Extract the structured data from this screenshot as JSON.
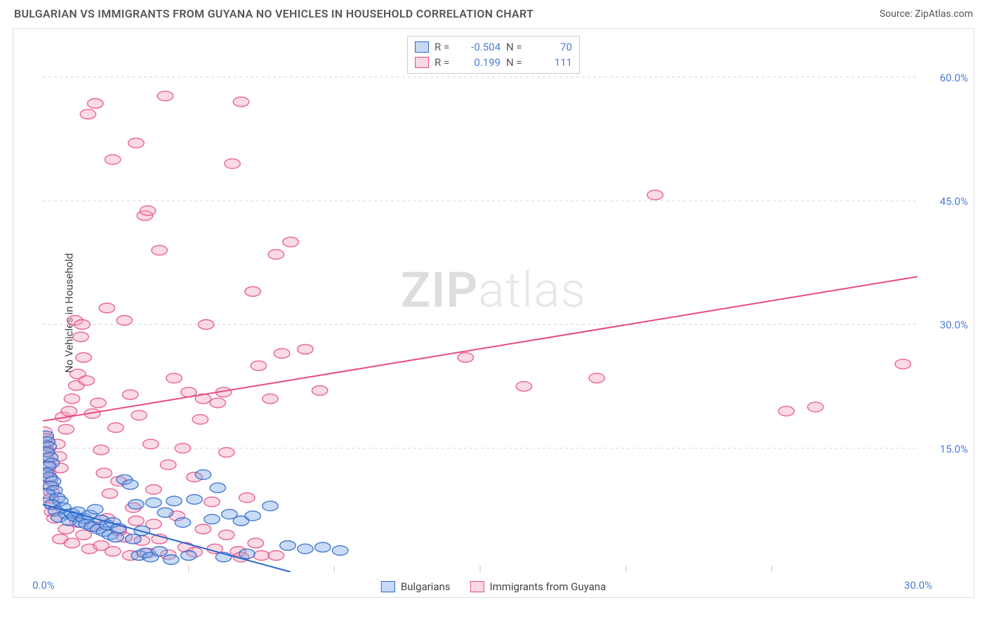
{
  "header": {
    "title": "BULGARIAN VS IMMIGRANTS FROM GUYANA NO VEHICLES IN HOUSEHOLD CORRELATION CHART",
    "source_label": "Source: ZipAtlas.com"
  },
  "watermark": {
    "zip": "ZIP",
    "atlas": "atlas"
  },
  "chart": {
    "type": "scatter",
    "ylabel": "No Vehicles in Household",
    "xlim": [
      0,
      30
    ],
    "ylim": [
      0,
      65
    ],
    "x_ticks_major": [
      0,
      30
    ],
    "x_tick_labels": [
      "0.0%",
      "30.0%"
    ],
    "x_ticks_minor": [
      5,
      10,
      15,
      20,
      25
    ],
    "y_ticks": [
      15,
      30,
      45,
      60
    ],
    "y_tick_labels": [
      "15.0%",
      "30.0%",
      "45.0%",
      "60.0%"
    ],
    "grid_color": "#dddddd",
    "axis_color": "#cfcfcf",
    "background_color": "#ffffff",
    "marker_radius": 9,
    "marker_opacity": 0.42,
    "marker_stroke_opacity": 0.85,
    "line_width": 2,
    "series": [
      {
        "id": "bulgarians",
        "label": "Bulgarians",
        "fill": "#7fa9e8",
        "stroke": "#2a66c9",
        "r_value": "-0.504",
        "n_value": "70",
        "trend": {
          "x1": 0,
          "y1": 8.2,
          "x2": 8.5,
          "y2": 0
        },
        "points": [
          [
            0.1,
            16.5
          ],
          [
            0.15,
            15.8
          ],
          [
            0.2,
            15.2
          ],
          [
            0.12,
            14.5
          ],
          [
            0.25,
            13.9
          ],
          [
            0.3,
            13.2
          ],
          [
            0.18,
            12.8
          ],
          [
            0.1,
            12.0
          ],
          [
            0.22,
            11.5
          ],
          [
            0.35,
            11.0
          ],
          [
            0.28,
            10.4
          ],
          [
            0.4,
            9.9
          ],
          [
            0.15,
            9.5
          ],
          [
            0.5,
            9.0
          ],
          [
            0.6,
            8.6
          ],
          [
            0.3,
            8.2
          ],
          [
            0.7,
            7.8
          ],
          [
            0.45,
            7.4
          ],
          [
            0.8,
            7.0
          ],
          [
            0.55,
            6.6
          ],
          [
            0.9,
            6.2
          ],
          [
            1.0,
            7.1
          ],
          [
            1.1,
            6.7
          ],
          [
            1.2,
            7.3
          ],
          [
            1.3,
            6.0
          ],
          [
            1.4,
            6.5
          ],
          [
            1.5,
            5.8
          ],
          [
            1.6,
            6.9
          ],
          [
            1.7,
            5.5
          ],
          [
            1.8,
            7.6
          ],
          [
            1.9,
            5.2
          ],
          [
            2.0,
            6.3
          ],
          [
            2.1,
            4.9
          ],
          [
            2.2,
            5.7
          ],
          [
            2.3,
            4.5
          ],
          [
            2.4,
            6.0
          ],
          [
            2.5,
            4.2
          ],
          [
            2.6,
            5.3
          ],
          [
            2.8,
            11.2
          ],
          [
            3.0,
            10.6
          ],
          [
            3.1,
            4.0
          ],
          [
            3.2,
            8.2
          ],
          [
            3.3,
            2.0
          ],
          [
            3.4,
            5.0
          ],
          [
            3.5,
            2.3
          ],
          [
            3.7,
            1.8
          ],
          [
            3.8,
            8.4
          ],
          [
            4.0,
            2.5
          ],
          [
            4.2,
            7.2
          ],
          [
            4.4,
            1.5
          ],
          [
            4.5,
            8.6
          ],
          [
            4.8,
            6.0
          ],
          [
            5.0,
            2.0
          ],
          [
            5.2,
            8.8
          ],
          [
            5.5,
            11.8
          ],
          [
            5.8,
            6.4
          ],
          [
            6.0,
            10.2
          ],
          [
            6.2,
            1.8
          ],
          [
            6.4,
            7.0
          ],
          [
            6.8,
            6.2
          ],
          [
            7.0,
            2.2
          ],
          [
            7.2,
            6.8
          ],
          [
            7.8,
            8.0
          ],
          [
            8.4,
            3.2
          ],
          [
            9.0,
            2.8
          ],
          [
            9.6,
            3.0
          ],
          [
            10.2,
            2.6
          ]
        ]
      },
      {
        "id": "guyana",
        "label": "Immigrants from Guyana",
        "fill": "#f4a8c0",
        "stroke": "#e84a84",
        "r_value": "0.199",
        "n_value": "111",
        "trend": {
          "x1": 0,
          "y1": 18.3,
          "x2": 30,
          "y2": 35.8
        },
        "points": [
          [
            0.05,
            17.0
          ],
          [
            0.1,
            16.2
          ],
          [
            0.08,
            15.4
          ],
          [
            0.15,
            14.6
          ],
          [
            0.12,
            13.8
          ],
          [
            0.2,
            12.9
          ],
          [
            0.18,
            12.1
          ],
          [
            0.25,
            11.3
          ],
          [
            0.22,
            10.5
          ],
          [
            0.3,
            9.7
          ],
          [
            0.28,
            8.9
          ],
          [
            0.35,
            8.1
          ],
          [
            0.32,
            7.3
          ],
          [
            0.4,
            6.5
          ],
          [
            0.5,
            15.5
          ],
          [
            0.55,
            14.0
          ],
          [
            0.6,
            12.6
          ],
          [
            0.7,
            18.8
          ],
          [
            0.8,
            17.3
          ],
          [
            0.9,
            19.5
          ],
          [
            1.0,
            21.0
          ],
          [
            1.1,
            30.5
          ],
          [
            1.15,
            22.6
          ],
          [
            1.2,
            24.0
          ],
          [
            1.3,
            28.5
          ],
          [
            1.35,
            30.0
          ],
          [
            1.4,
            26.0
          ],
          [
            1.5,
            23.2
          ],
          [
            1.55,
            55.5
          ],
          [
            1.7,
            19.2
          ],
          [
            1.8,
            56.8
          ],
          [
            1.9,
            20.5
          ],
          [
            2.0,
            14.8
          ],
          [
            2.1,
            12.0
          ],
          [
            2.2,
            32.0
          ],
          [
            2.3,
            9.5
          ],
          [
            2.4,
            50.0
          ],
          [
            2.5,
            17.5
          ],
          [
            2.6,
            11.0
          ],
          [
            2.8,
            30.5
          ],
          [
            3.0,
            21.5
          ],
          [
            3.1,
            7.8
          ],
          [
            3.2,
            52.0
          ],
          [
            3.3,
            19.0
          ],
          [
            3.5,
            43.2
          ],
          [
            3.6,
            43.8
          ],
          [
            3.7,
            15.5
          ],
          [
            3.8,
            10.0
          ],
          [
            4.0,
            39.0
          ],
          [
            4.2,
            57.7
          ],
          [
            4.3,
            13.0
          ],
          [
            4.5,
            23.5
          ],
          [
            4.8,
            15.0
          ],
          [
            5.0,
            21.8
          ],
          [
            5.2,
            11.5
          ],
          [
            5.4,
            18.5
          ],
          [
            5.5,
            21.0
          ],
          [
            5.6,
            30.0
          ],
          [
            5.8,
            8.5
          ],
          [
            6.0,
            20.5
          ],
          [
            6.2,
            21.8
          ],
          [
            6.3,
            14.5
          ],
          [
            6.5,
            49.5
          ],
          [
            6.7,
            2.5
          ],
          [
            6.8,
            57.0
          ],
          [
            7.0,
            9.0
          ],
          [
            7.2,
            34.0
          ],
          [
            7.4,
            25.0
          ],
          [
            7.5,
            2.0
          ],
          [
            7.8,
            21.0
          ],
          [
            8.0,
            38.5
          ],
          [
            8.2,
            26.5
          ],
          [
            8.5,
            40.0
          ],
          [
            9.0,
            27.0
          ],
          [
            9.5,
            22.0
          ],
          [
            14.5,
            26.0
          ],
          [
            16.5,
            22.5
          ],
          [
            19.0,
            23.5
          ],
          [
            21.0,
            45.7
          ],
          [
            25.5,
            19.5
          ],
          [
            26.5,
            20.0
          ],
          [
            29.5,
            25.2
          ],
          [
            0.6,
            4.0
          ],
          [
            0.8,
            5.2
          ],
          [
            1.0,
            3.5
          ],
          [
            1.2,
            6.0
          ],
          [
            1.4,
            4.5
          ],
          [
            1.6,
            2.8
          ],
          [
            1.8,
            5.5
          ],
          [
            2.0,
            3.2
          ],
          [
            2.2,
            6.5
          ],
          [
            2.4,
            2.5
          ],
          [
            2.6,
            5.0
          ],
          [
            2.8,
            4.2
          ],
          [
            3.0,
            2.0
          ],
          [
            3.2,
            6.2
          ],
          [
            3.4,
            3.8
          ],
          [
            3.6,
            2.3
          ],
          [
            3.8,
            5.8
          ],
          [
            4.0,
            4.0
          ],
          [
            4.3,
            2.1
          ],
          [
            4.6,
            6.8
          ],
          [
            4.9,
            3.0
          ],
          [
            5.2,
            2.4
          ],
          [
            5.5,
            5.2
          ],
          [
            5.9,
            2.8
          ],
          [
            6.3,
            4.5
          ],
          [
            6.8,
            1.8
          ],
          [
            7.3,
            3.5
          ],
          [
            8.0,
            2.0
          ]
        ]
      }
    ],
    "legend_top": {
      "r_label": "R =",
      "n_label": "N ="
    },
    "legend_bottom_labels": [
      "Bulgarians",
      "Immigrants from Guyana"
    ]
  }
}
